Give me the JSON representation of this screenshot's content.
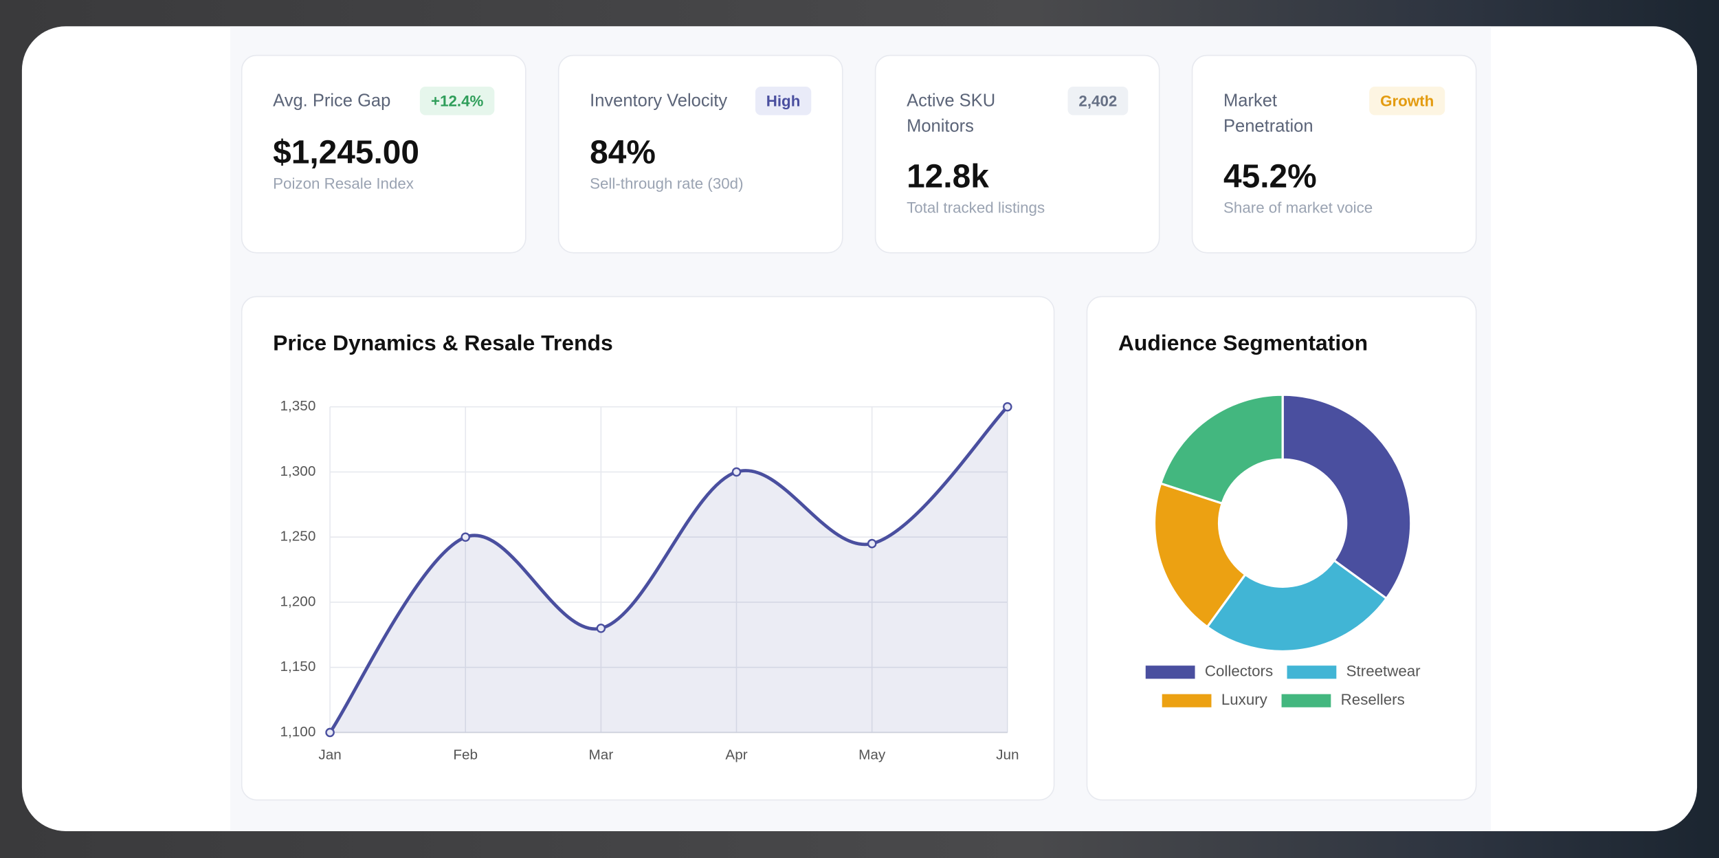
{
  "kpis": [
    {
      "label": "Avg. Price Gap",
      "badge": "+12.4%",
      "value": "$1,245.00",
      "caption": "Poizon Resale Index"
    },
    {
      "label": "Inventory Velocity",
      "badge": "High",
      "value": "84%",
      "caption": "Sell-through rate (30d)"
    },
    {
      "label": "Active SKU Monitors",
      "badge": "2,402",
      "value": "12.8k",
      "caption": "Total tracked listings"
    },
    {
      "label": "Market Penetration",
      "badge": "Growth",
      "value": "45.2%",
      "caption": "Share of market voice"
    }
  ],
  "chart_data": [
    {
      "type": "line",
      "title": "Price Dynamics & Resale Trends",
      "categories": [
        "Jan",
        "Feb",
        "Mar",
        "Apr",
        "May",
        "Jun"
      ],
      "values": [
        1100,
        1250,
        1180,
        1300,
        1245,
        1350
      ],
      "color": "#4a4f9f",
      "area": true,
      "grid": true,
      "ylim": [
        1100,
        1350
      ],
      "yticks": [
        {
          "value": 1100,
          "label": "1,100"
        },
        {
          "value": 1150,
          "label": "1,150"
        },
        {
          "value": 1200,
          "label": "1,200"
        },
        {
          "value": 1250,
          "label": "1,250"
        },
        {
          "value": 1300,
          "label": "1,300"
        },
        {
          "value": 1350,
          "label": "1,350"
        }
      ]
    },
    {
      "type": "doughnut",
      "title": "Audience Segmentation",
      "categories": [
        "Collectors",
        "Streetwear",
        "Luxury",
        "Resellers"
      ],
      "values": [
        35,
        25,
        20,
        20
      ],
      "colors": [
        "#4a4f9f",
        "#41b5d5",
        "#eca112",
        "#43b77f"
      ],
      "legend": "bottom"
    }
  ]
}
